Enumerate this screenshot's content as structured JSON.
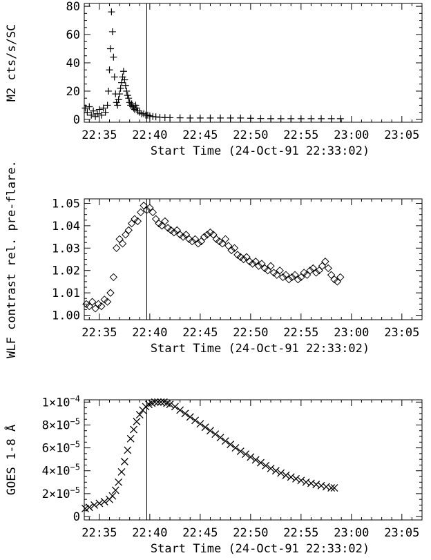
{
  "chart_data": [
    {
      "type": "scatter",
      "marker": "plus",
      "xlabel": "Start Time (24-Oct-91 22:33:02)",
      "ylabel": "M2 cts/s/SC",
      "x_ticks": [
        "22:35",
        "22:40",
        "22:45",
        "22:50",
        "22:55",
        "23:00",
        "23:05"
      ],
      "x_tick_minutes": [
        35,
        40,
        45,
        50,
        55,
        60,
        65
      ],
      "xlim_minutes": [
        33.5,
        67
      ],
      "y_ticks": [
        "0",
        "20",
        "40",
        "60",
        "80"
      ],
      "y_tick_values": [
        0,
        20,
        40,
        60,
        80
      ],
      "ylim": [
        -2,
        82
      ],
      "vline_minutes": 39.7,
      "series": [
        {
          "x_minutes": [
            33.6,
            33.8,
            34.0,
            34.2,
            34.4,
            34.6,
            34.8,
            35.0,
            35.2,
            35.4,
            35.6,
            35.8,
            35.9,
            36.0,
            36.1,
            36.2,
            36.3,
            36.4,
            36.5,
            36.6,
            36.7,
            36.8,
            36.9,
            37.0,
            37.1,
            37.2,
            37.3,
            37.4,
            37.5,
            37.6,
            37.7,
            37.8,
            37.9,
            38.0,
            38.1,
            38.2,
            38.3,
            38.4,
            38.5,
            38.6,
            38.7,
            38.8,
            39.0,
            39.2,
            39.4,
            39.6,
            39.8,
            40.0,
            40.3,
            40.6,
            41.0,
            41.5,
            42.0,
            43.0,
            44.0,
            45.0,
            46.0,
            47.0,
            48.0,
            49.0,
            50.0,
            51.0,
            52.0,
            53.0,
            54.0,
            55.0,
            56.0,
            57.0,
            58.0,
            58.9
          ],
          "y": [
            8,
            5,
            9,
            3,
            6,
            2,
            4,
            7,
            3,
            8,
            5,
            10,
            20,
            35,
            50,
            76,
            62,
            44,
            30,
            18,
            12,
            10,
            14,
            18,
            22,
            26,
            30,
            34,
            28,
            24,
            20,
            17,
            15,
            12,
            10,
            11,
            9,
            8,
            7,
            10,
            8,
            6,
            5,
            4,
            4,
            3,
            3,
            2.5,
            2,
            1.8,
            1.5,
            1.3,
            1.2,
            1.1,
            1,
            1,
            1,
            1,
            1,
            1,
            0.8,
            0.6,
            0.5,
            0.5,
            0.5,
            0.5,
            0.5,
            0.5,
            0.5,
            0.5
          ]
        }
      ]
    },
    {
      "type": "scatter",
      "marker": "diamond",
      "xlabel": "Start Time (24-Oct-91 22:33:02)",
      "ylabel": "WLF contrast rel. pre-flare.",
      "x_ticks": [
        "22:35",
        "22:40",
        "22:45",
        "22:50",
        "22:55",
        "23:00",
        "23:05"
      ],
      "x_tick_minutes": [
        35,
        40,
        45,
        50,
        55,
        60,
        65
      ],
      "xlim_minutes": [
        33.5,
        67
      ],
      "y_ticks": [
        "1.00",
        "1.01",
        "1.02",
        "1.03",
        "1.04",
        "1.05"
      ],
      "y_tick_values": [
        1.0,
        1.01,
        1.02,
        1.03,
        1.04,
        1.05
      ],
      "ylim": [
        0.998,
        1.052
      ],
      "vline_minutes": 39.7,
      "series": [
        {
          "x_minutes": [
            33.7,
            34.0,
            34.3,
            34.6,
            34.9,
            35.2,
            35.5,
            35.8,
            36.1,
            36.4,
            36.7,
            37.0,
            37.3,
            37.6,
            37.9,
            38.2,
            38.5,
            38.8,
            39.1,
            39.4,
            39.7,
            40.0,
            40.3,
            40.6,
            40.9,
            41.2,
            41.5,
            41.8,
            42.1,
            42.4,
            42.7,
            43.0,
            43.3,
            43.6,
            43.9,
            44.2,
            44.5,
            44.8,
            45.1,
            45.4,
            45.7,
            46.0,
            46.3,
            46.6,
            46.9,
            47.2,
            47.5,
            47.8,
            48.1,
            48.4,
            48.7,
            49.0,
            49.3,
            49.6,
            49.9,
            50.2,
            50.5,
            50.8,
            51.1,
            51.4,
            51.7,
            52.0,
            52.3,
            52.6,
            52.9,
            53.2,
            53.5,
            53.8,
            54.1,
            54.4,
            54.7,
            55.0,
            55.3,
            55.6,
            55.9,
            56.2,
            56.5,
            56.8,
            57.1,
            57.4,
            57.7,
            58.0,
            58.3,
            58.6,
            58.9
          ],
          "y": [
            1.005,
            1.004,
            1.006,
            1.003,
            1.005,
            1.004,
            1.007,
            1.006,
            1.01,
            1.017,
            1.03,
            1.034,
            1.032,
            1.036,
            1.038,
            1.041,
            1.043,
            1.042,
            1.046,
            1.049,
            1.047,
            1.048,
            1.046,
            1.043,
            1.041,
            1.04,
            1.042,
            1.039,
            1.038,
            1.037,
            1.038,
            1.036,
            1.035,
            1.036,
            1.034,
            1.033,
            1.034,
            1.032,
            1.033,
            1.035,
            1.036,
            1.037,
            1.036,
            1.034,
            1.033,
            1.032,
            1.034,
            1.031,
            1.029,
            1.03,
            1.027,
            1.026,
            1.025,
            1.026,
            1.024,
            1.023,
            1.024,
            1.022,
            1.023,
            1.021,
            1.02,
            1.022,
            1.019,
            1.018,
            1.02,
            1.017,
            1.018,
            1.016,
            1.017,
            1.018,
            1.016,
            1.017,
            1.019,
            1.018,
            1.02,
            1.021,
            1.019,
            1.02,
            1.022,
            1.024,
            1.021,
            1.018,
            1.016,
            1.015,
            1.017
          ]
        }
      ]
    },
    {
      "type": "scatter",
      "marker": "x",
      "xlabel": "Start Time (24-Oct-91 22:33:02)",
      "ylabel": "GOES 1-8 Å",
      "x_ticks": [
        "22:35",
        "22:40",
        "22:45",
        "22:50",
        "22:55",
        "23:00",
        "23:05"
      ],
      "x_tick_minutes": [
        35,
        40,
        45,
        50,
        55,
        60,
        65
      ],
      "xlim_minutes": [
        33.5,
        67
      ],
      "y_ticks_mantissa": [
        "0",
        "2×10",
        "4×10",
        "6×10",
        "8×10",
        "1×10"
      ],
      "y_ticks_exponent": [
        "",
        "−5",
        "−5",
        "−5",
        "−5",
        "−4"
      ],
      "y_tick_values": [
        0,
        2e-05,
        4e-05,
        6e-05,
        8e-05,
        0.0001
      ],
      "ylim": [
        -3e-06,
        0.000102
      ],
      "vline_minutes": 39.7,
      "series": [
        {
          "x_minutes": [
            33.6,
            34.0,
            34.5,
            35.0,
            35.5,
            36.0,
            36.3,
            36.6,
            36.9,
            37.2,
            37.5,
            37.8,
            38.1,
            38.4,
            38.7,
            39.0,
            39.3,
            39.6,
            39.9,
            40.2,
            40.5,
            40.8,
            41.1,
            41.4,
            41.7,
            42.0,
            42.5,
            43.0,
            43.5,
            44.0,
            44.5,
            45.0,
            45.5,
            46.0,
            46.5,
            47.0,
            47.5,
            48.0,
            48.5,
            49.0,
            49.5,
            50.0,
            50.5,
            51.0,
            51.5,
            52.0,
            52.5,
            53.0,
            53.5,
            54.0,
            54.5,
            55.0,
            55.5,
            56.0,
            56.5,
            57.0,
            57.5,
            58.0,
            58.3
          ],
          "y": [
            7e-06,
            8e-06,
            1e-05,
            1.15e-05,
            1.3e-05,
            1.5e-05,
            1.8e-05,
            2.3e-05,
            3e-05,
            3.9e-05,
            4.8e-05,
            5.8e-05,
            6.8e-05,
            7.6e-05,
            8.3e-05,
            8.9e-05,
            9.3e-05,
            9.6e-05,
            9.8e-05,
            9.9e-05,
            0.0001,
            0.0001,
            0.0001,
            0.0001,
            9.9e-05,
            9.8e-05,
            9.6e-05,
            9.3e-05,
            9e-05,
            8.7e-05,
            8.4e-05,
            8.1e-05,
            7.8e-05,
            7.5e-05,
            7.2e-05,
            6.9e-05,
            6.6e-05,
            6.3e-05,
            6e-05,
            5.7e-05,
            5.45e-05,
            5.2e-05,
            4.95e-05,
            4.7e-05,
            4.45e-05,
            4.2e-05,
            4e-05,
            3.8e-05,
            3.6e-05,
            3.45e-05,
            3.3e-05,
            3.15e-05,
            3e-05,
            2.9e-05,
            2.8e-05,
            2.7e-05,
            2.6e-05,
            2.5e-05,
            2.5e-05
          ]
        }
      ]
    }
  ]
}
